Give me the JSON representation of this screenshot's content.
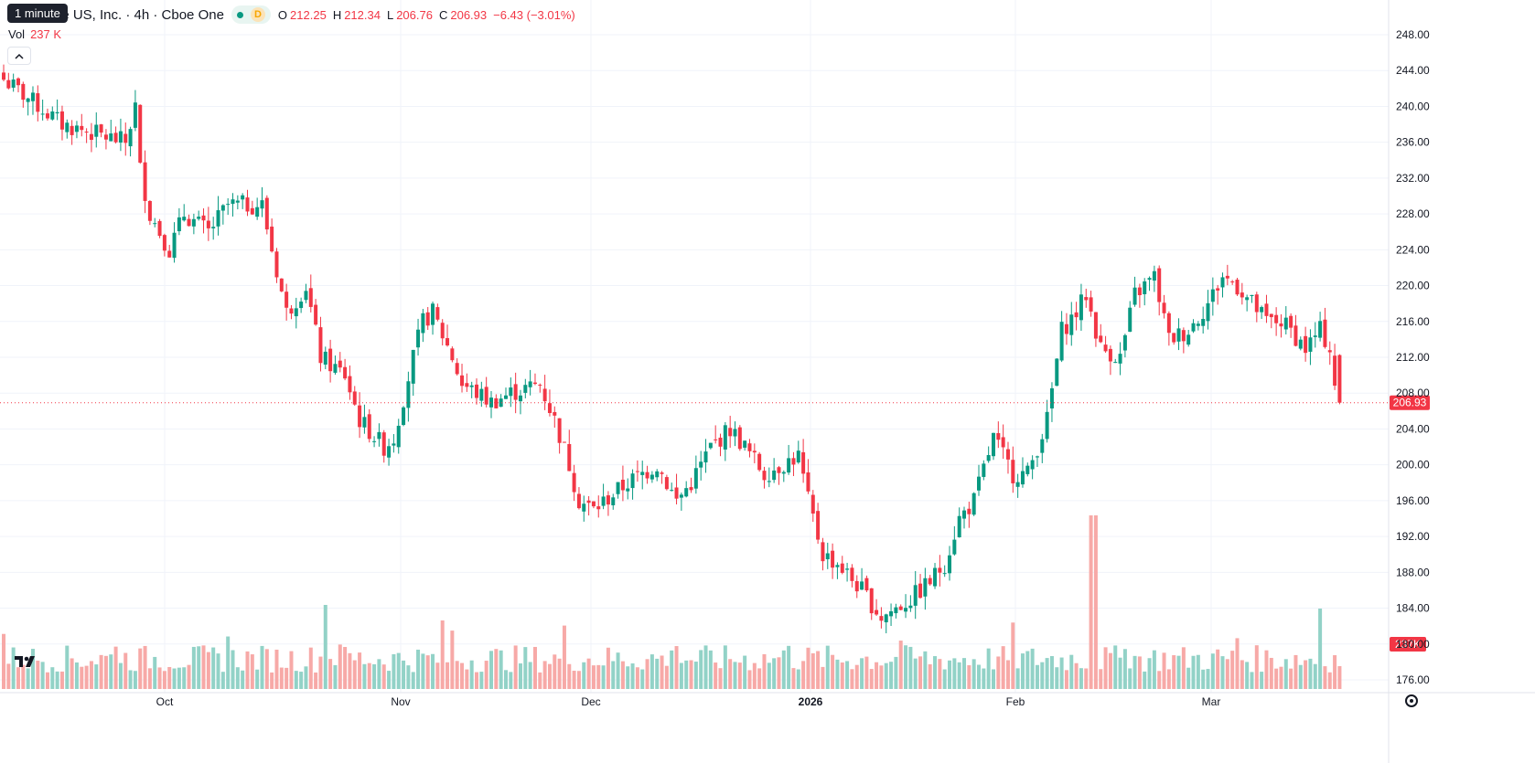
{
  "header": {
    "tooltip": "1 minute",
    "title": "le US, Inc. · 4h · Cboe One",
    "market_status_icon": "dot-icon",
    "delay_badge": "D",
    "ohlc": {
      "open_label": "O",
      "open": "212.25",
      "high_label": "H",
      "high": "212.34",
      "low_label": "L",
      "low": "206.76",
      "close_label": "C",
      "close": "206.93",
      "change": "−6.43 (−3.01%)"
    },
    "volume_label": "Vol",
    "volume_value": "237 K"
  },
  "colors": {
    "up": "#089981",
    "down": "#f23645",
    "up_volume": "#92d2c7",
    "down_volume": "#f7a9a7",
    "grid": "#f0f3fa"
  },
  "price_axis": {
    "ticks": [
      "248.00",
      "244.00",
      "240.00",
      "236.00",
      "232.00",
      "228.00",
      "224.00",
      "220.00",
      "216.00",
      "212.00",
      "208.00",
      "204.00",
      "200.00",
      "196.00",
      "192.00",
      "188.00",
      "184.00",
      "180.00",
      "176.00"
    ],
    "last_price_label": "206.93",
    "volume_label": "237K"
  },
  "time_axis": {
    "ticks": [
      "Oct",
      "Nov",
      "Dec",
      "2026",
      "Feb",
      "Mar"
    ]
  },
  "chart_data": {
    "type": "candlestick",
    "ylim": [
      174,
      250
    ],
    "last_price": 206.93,
    "waypoints": [
      [
        0,
        243
      ],
      [
        12,
        238
      ],
      [
        25,
        236
      ],
      [
        27,
        240
      ],
      [
        28,
        233
      ],
      [
        30,
        228
      ],
      [
        34,
        224
      ],
      [
        37,
        228
      ],
      [
        42,
        226
      ],
      [
        46,
        229
      ],
      [
        53,
        229
      ],
      [
        55,
        224
      ],
      [
        58,
        217
      ],
      [
        62,
        220
      ],
      [
        65,
        212
      ],
      [
        70,
        210
      ],
      [
        73,
        205
      ],
      [
        78,
        202
      ],
      [
        80,
        203
      ],
      [
        84,
        212
      ],
      [
        86,
        216
      ],
      [
        88,
        217
      ],
      [
        92,
        212
      ],
      [
        94,
        209
      ],
      [
        100,
        207
      ],
      [
        104,
        208
      ],
      [
        110,
        209
      ],
      [
        113,
        205
      ],
      [
        116,
        200
      ],
      [
        118,
        196
      ],
      [
        121,
        195
      ],
      [
        128,
        198
      ],
      [
        134,
        200
      ],
      [
        138,
        196
      ],
      [
        141,
        198
      ],
      [
        145,
        202
      ],
      [
        149,
        204
      ],
      [
        152,
        202
      ],
      [
        156,
        199
      ],
      [
        163,
        201
      ],
      [
        165,
        196
      ],
      [
        168,
        190
      ],
      [
        171,
        189
      ],
      [
        176,
        186
      ],
      [
        180,
        183
      ],
      [
        186,
        185
      ],
      [
        190,
        187
      ],
      [
        193,
        189
      ],
      [
        196,
        194
      ],
      [
        199,
        196
      ],
      [
        203,
        203
      ],
      [
        207,
        199
      ],
      [
        210,
        199
      ],
      [
        214,
        205
      ],
      [
        217,
        215
      ],
      [
        220,
        217
      ],
      [
        222,
        219
      ],
      [
        225,
        213
      ],
      [
        229,
        212
      ],
      [
        232,
        219
      ],
      [
        236,
        221
      ],
      [
        239,
        214
      ],
      [
        243,
        215
      ],
      [
        247,
        218
      ],
      [
        250,
        221
      ],
      [
        253,
        220
      ],
      [
        256,
        218
      ],
      [
        259,
        216
      ],
      [
        262,
        216
      ],
      [
        264,
        215
      ],
      [
        267,
        213
      ],
      [
        270,
        215
      ],
      [
        272,
        213
      ],
      [
        273,
        209
      ],
      [
        274,
        207
      ]
    ],
    "volume_units": "K",
    "volume_range": [
      60,
      1150
    ]
  }
}
